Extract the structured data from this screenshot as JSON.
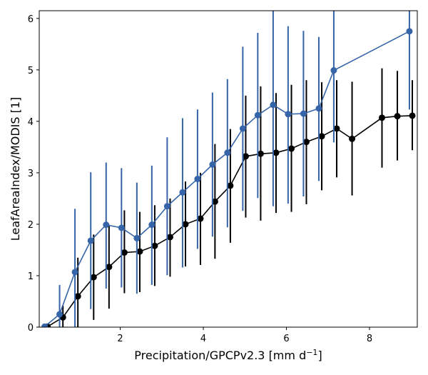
{
  "chart_data": {
    "type": "line",
    "title": "",
    "xlabel": "Precipitation/GPCPv2.3 [mm d",
    "xlabel_sup": "−1",
    "xlabel_end": "]",
    "ylabel": "LeafAreaIndex/MODIS [1]",
    "xlim": [
      0.05,
      9.15
    ],
    "ylim": [
      0,
      6.15
    ],
    "xticks": [
      2,
      4,
      6,
      8
    ],
    "yticks": [
      0,
      1,
      2,
      3,
      4,
      5,
      6
    ],
    "legend": "none",
    "grid": false,
    "series": [
      {
        "name": "black",
        "color": "#000000",
        "points": [
          {
            "x": 0.25,
            "y": 0.01,
            "lo": 0.0,
            "hi": 0.05
          },
          {
            "x": 0.62,
            "y": 0.19,
            "lo": 0.0,
            "hi": 0.42
          },
          {
            "x": 0.98,
            "y": 0.6,
            "lo": 0.0,
            "hi": 1.35
          },
          {
            "x": 1.36,
            "y": 0.97,
            "lo": 0.14,
            "hi": 1.8
          },
          {
            "x": 1.73,
            "y": 1.17,
            "lo": 0.36,
            "hi": 1.98
          },
          {
            "x": 2.1,
            "y": 1.45,
            "lo": 0.66,
            "hi": 2.27
          },
          {
            "x": 2.47,
            "y": 1.47,
            "lo": 0.68,
            "hi": 2.24
          },
          {
            "x": 2.83,
            "y": 1.58,
            "lo": 0.8,
            "hi": 2.37
          },
          {
            "x": 3.2,
            "y": 1.75,
            "lo": 0.98,
            "hi": 2.5
          },
          {
            "x": 3.57,
            "y": 2.0,
            "lo": 1.18,
            "hi": 2.83
          },
          {
            "x": 3.93,
            "y": 2.11,
            "lo": 1.21,
            "hi": 3.0
          },
          {
            "x": 4.28,
            "y": 2.44,
            "lo": 1.33,
            "hi": 3.56
          },
          {
            "x": 4.65,
            "y": 2.75,
            "lo": 1.64,
            "hi": 3.85
          },
          {
            "x": 5.02,
            "y": 3.32,
            "lo": 2.13,
            "hi": 4.5
          },
          {
            "x": 5.38,
            "y": 3.37,
            "lo": 2.07,
            "hi": 4.68
          },
          {
            "x": 5.75,
            "y": 3.39,
            "lo": 2.22,
            "hi": 4.55
          },
          {
            "x": 6.12,
            "y": 3.47,
            "lo": 2.24,
            "hi": 4.71
          },
          {
            "x": 6.48,
            "y": 3.6,
            "lo": 2.39,
            "hi": 4.8
          },
          {
            "x": 6.85,
            "y": 3.71,
            "lo": 2.66,
            "hi": 4.76
          },
          {
            "x": 7.21,
            "y": 3.86,
            "lo": 2.91,
            "hi": 4.8
          },
          {
            "x": 7.58,
            "y": 3.66,
            "lo": 2.56,
            "hi": 4.77
          },
          {
            "x": 8.3,
            "y": 4.07,
            "lo": 3.1,
            "hi": 5.03
          },
          {
            "x": 8.67,
            "y": 4.1,
            "lo": 3.24,
            "hi": 4.98
          },
          {
            "x": 9.03,
            "y": 4.11,
            "lo": 3.44,
            "hi": 4.8
          }
        ]
      },
      {
        "name": "blue",
        "color": "#3564a8",
        "points": [
          {
            "x": 0.18,
            "y": 0.01,
            "lo": 0.0,
            "hi": 0.04
          },
          {
            "x": 0.54,
            "y": 0.25,
            "lo": 0.0,
            "hi": 0.82
          },
          {
            "x": 0.91,
            "y": 1.07,
            "lo": 0.0,
            "hi": 2.3
          },
          {
            "x": 1.29,
            "y": 1.68,
            "lo": 0.35,
            "hi": 3.01
          },
          {
            "x": 1.66,
            "y": 1.99,
            "lo": 0.75,
            "hi": 3.2
          },
          {
            "x": 2.03,
            "y": 1.93,
            "lo": 0.77,
            "hi": 3.09
          },
          {
            "x": 2.4,
            "y": 1.73,
            "lo": 0.65,
            "hi": 2.81
          },
          {
            "x": 2.76,
            "y": 1.99,
            "lo": 0.82,
            "hi": 3.14
          },
          {
            "x": 3.13,
            "y": 2.35,
            "lo": 1.01,
            "hi": 3.69
          },
          {
            "x": 3.5,
            "y": 2.62,
            "lo": 1.16,
            "hi": 4.06
          },
          {
            "x": 3.86,
            "y": 2.88,
            "lo": 1.52,
            "hi": 4.23
          },
          {
            "x": 4.22,
            "y": 3.16,
            "lo": 1.76,
            "hi": 4.56
          },
          {
            "x": 4.58,
            "y": 3.39,
            "lo": 1.94,
            "hi": 4.82
          },
          {
            "x": 4.95,
            "y": 3.86,
            "lo": 2.26,
            "hi": 5.45
          },
          {
            "x": 5.31,
            "y": 4.12,
            "lo": 2.51,
            "hi": 5.72
          },
          {
            "x": 5.68,
            "y": 4.32,
            "lo": 2.35,
            "hi": 6.3
          },
          {
            "x": 6.04,
            "y": 4.14,
            "lo": 2.4,
            "hi": 5.85
          },
          {
            "x": 6.41,
            "y": 4.15,
            "lo": 2.54,
            "hi": 5.76
          },
          {
            "x": 6.78,
            "y": 4.25,
            "lo": 2.84,
            "hi": 5.64
          },
          {
            "x": 7.14,
            "y": 4.99,
            "lo": 3.59,
            "hi": 6.4
          },
          {
            "x": 8.96,
            "y": 5.75,
            "lo": 4.23,
            "hi": 7.3
          }
        ]
      }
    ]
  }
}
